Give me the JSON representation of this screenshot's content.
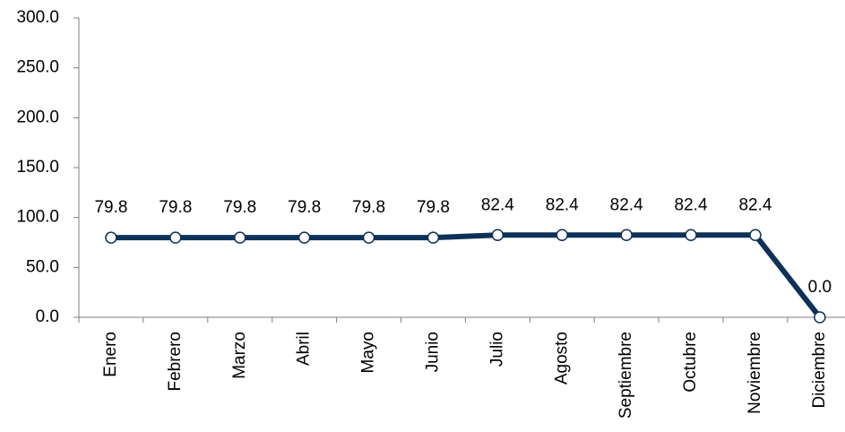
{
  "chart_data": {
    "type": "line",
    "categories": [
      "Enero",
      "Febrero",
      "Marzo",
      "Abril",
      "Mayo",
      "Junio",
      "Julio",
      "Agosto",
      "Septiembre",
      "Octubre",
      "Noviembre",
      "Diciembre"
    ],
    "series": [
      {
        "color": "#0d3158",
        "values": [
          79.8,
          79.8,
          79.8,
          79.8,
          79.8,
          79.8,
          82.4,
          82.4,
          82.4,
          82.4,
          82.4,
          0
        ],
        "value_labels": [
          "79.8",
          "79.8",
          "79.8",
          "79.8",
          "79.8",
          "79.8",
          "82.4",
          "82.4",
          "82.4",
          "82.4",
          "82.4",
          "0.0"
        ]
      }
    ],
    "ylim": [
      0,
      300
    ],
    "yticks": [
      {
        "value": 0,
        "label": "0.0"
      },
      {
        "value": 50,
        "label": "50.0"
      },
      {
        "value": 100,
        "label": "100.0"
      },
      {
        "value": 150,
        "label": "150.0"
      },
      {
        "value": 200,
        "label": "200.0"
      },
      {
        "value": 250,
        "label": "250.0"
      },
      {
        "value": 300,
        "label": "300.0"
      }
    ]
  }
}
